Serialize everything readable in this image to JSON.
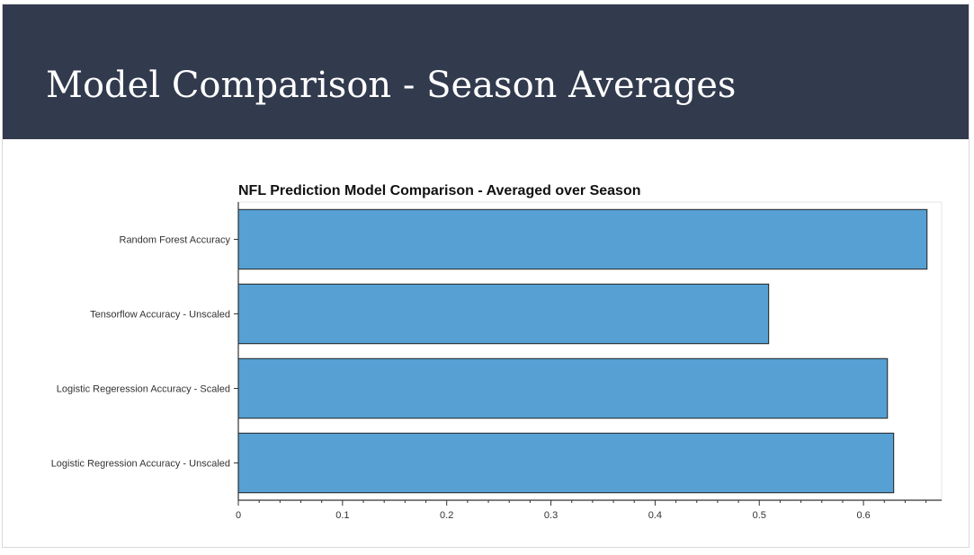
{
  "slide": {
    "title": "Model Comparison - Season Averages"
  },
  "colors": {
    "header_bg": "#323a4e",
    "bar_fill": "#56a0d3",
    "bar_stroke": "#222222"
  },
  "chart_data": {
    "type": "bar",
    "orientation": "horizontal",
    "title": "NFL Prediction Model Comparison - Averaged over Season",
    "xlabel": "",
    "ylabel": "",
    "categories": [
      "Random Forest Accuracy",
      "Tensorflow Accuracy - Unscaled",
      "Logistic Regeression Accuracy - Scaled",
      "Logistic Regression Accuracy - Unscaled"
    ],
    "values": [
      0.661,
      0.509,
      0.623,
      0.629
    ],
    "xlim": [
      0,
      0.675
    ],
    "xticks": [
      0,
      0.1,
      0.2,
      0.3,
      0.4,
      0.5,
      0.6
    ],
    "xtick_labels": [
      "0",
      "0.1",
      "0.2",
      "0.3",
      "0.4",
      "0.5",
      "0.6"
    ],
    "minor_ticks_per_major": 5,
    "grid": false,
    "legend": "none"
  }
}
